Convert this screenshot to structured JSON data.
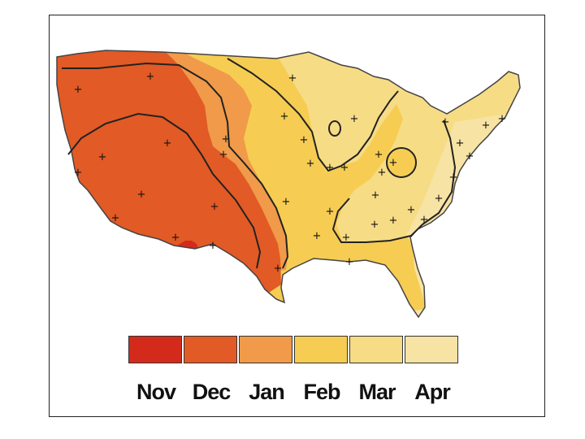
{
  "legend": {
    "items": [
      {
        "label": "Nov",
        "color": "#d42a1c"
      },
      {
        "label": "Dec",
        "color": "#e25a25"
      },
      {
        "label": "Jan",
        "color": "#f09a4a"
      },
      {
        "label": "Feb",
        "color": "#f6cd52"
      },
      {
        "label": "Mar",
        "color": "#f7dc86"
      },
      {
        "label": "Apr",
        "color": "#f7e3a4"
      }
    ]
  },
  "map": {
    "zone_colors": {
      "nov": "#d42a1c",
      "dec": "#e25a25",
      "jan": "#f09a4a",
      "feb": "#f6cd52",
      "mar": "#f7dc86",
      "apr": "#f7e3a4"
    },
    "station_marker": "+"
  }
}
